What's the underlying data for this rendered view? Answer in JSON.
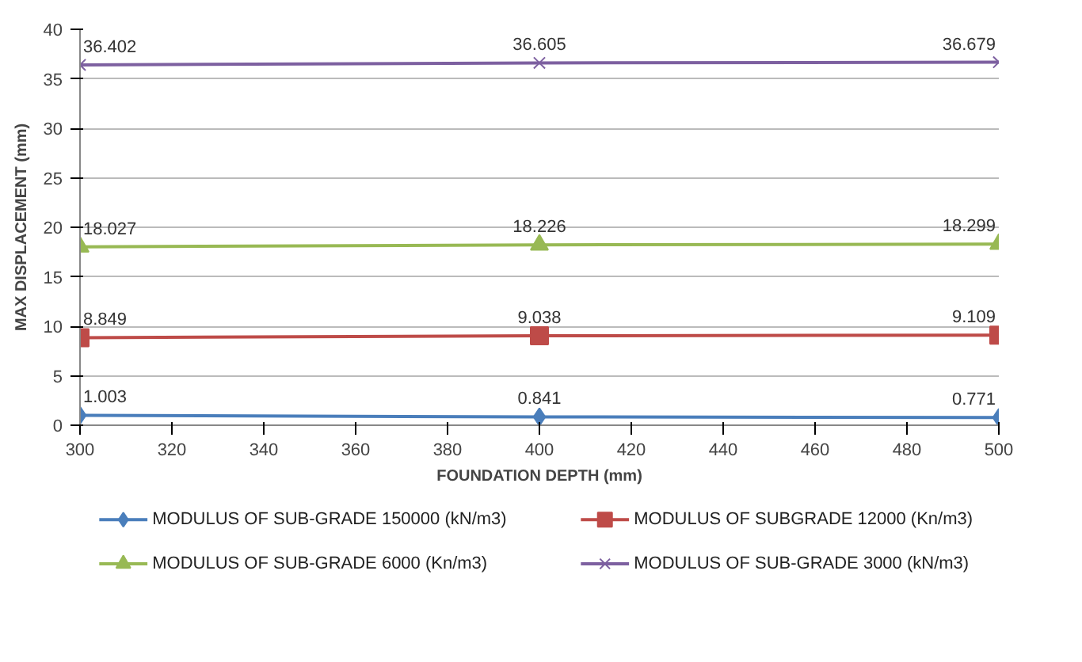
{
  "chart_data": {
    "type": "line",
    "xlabel": "FOUNDATION DEPTH (mm)",
    "ylabel": "MAX DISPLACEMENT (mm)",
    "x": [
      300,
      400,
      500
    ],
    "series": [
      {
        "name": "MODULUS OF SUB-GRADE 150000 (kN/m3)",
        "color": "#4a7ebb",
        "marker": "diamond",
        "values": [
          1.003,
          0.841,
          0.771
        ]
      },
      {
        "name": "MODULUS OF SUBGRADE 12000 (Kn/m3)",
        "color": "#be4b48",
        "marker": "square",
        "values": [
          8.849,
          9.038,
          9.109
        ]
      },
      {
        "name": "MODULUS OF SUB-GRADE 6000 (Kn/m3)",
        "color": "#98b954",
        "marker": "triangle",
        "values": [
          18.027,
          18.226,
          18.299
        ]
      },
      {
        "name": "MODULUS OF SUB-GRADE 3000 (kN/m3)",
        "color": "#7d60a0",
        "marker": "cross",
        "values": [
          36.402,
          36.605,
          36.679
        ]
      }
    ],
    "xlim": [
      300,
      500
    ],
    "xticks": [
      300,
      320,
      340,
      360,
      380,
      400,
      420,
      440,
      460,
      480,
      500
    ],
    "ylim": [
      0,
      40
    ],
    "yticks": [
      0,
      5,
      10,
      15,
      20,
      25,
      30,
      35,
      40
    ],
    "grid": "y",
    "legend": "bottom",
    "data_labels": true
  }
}
